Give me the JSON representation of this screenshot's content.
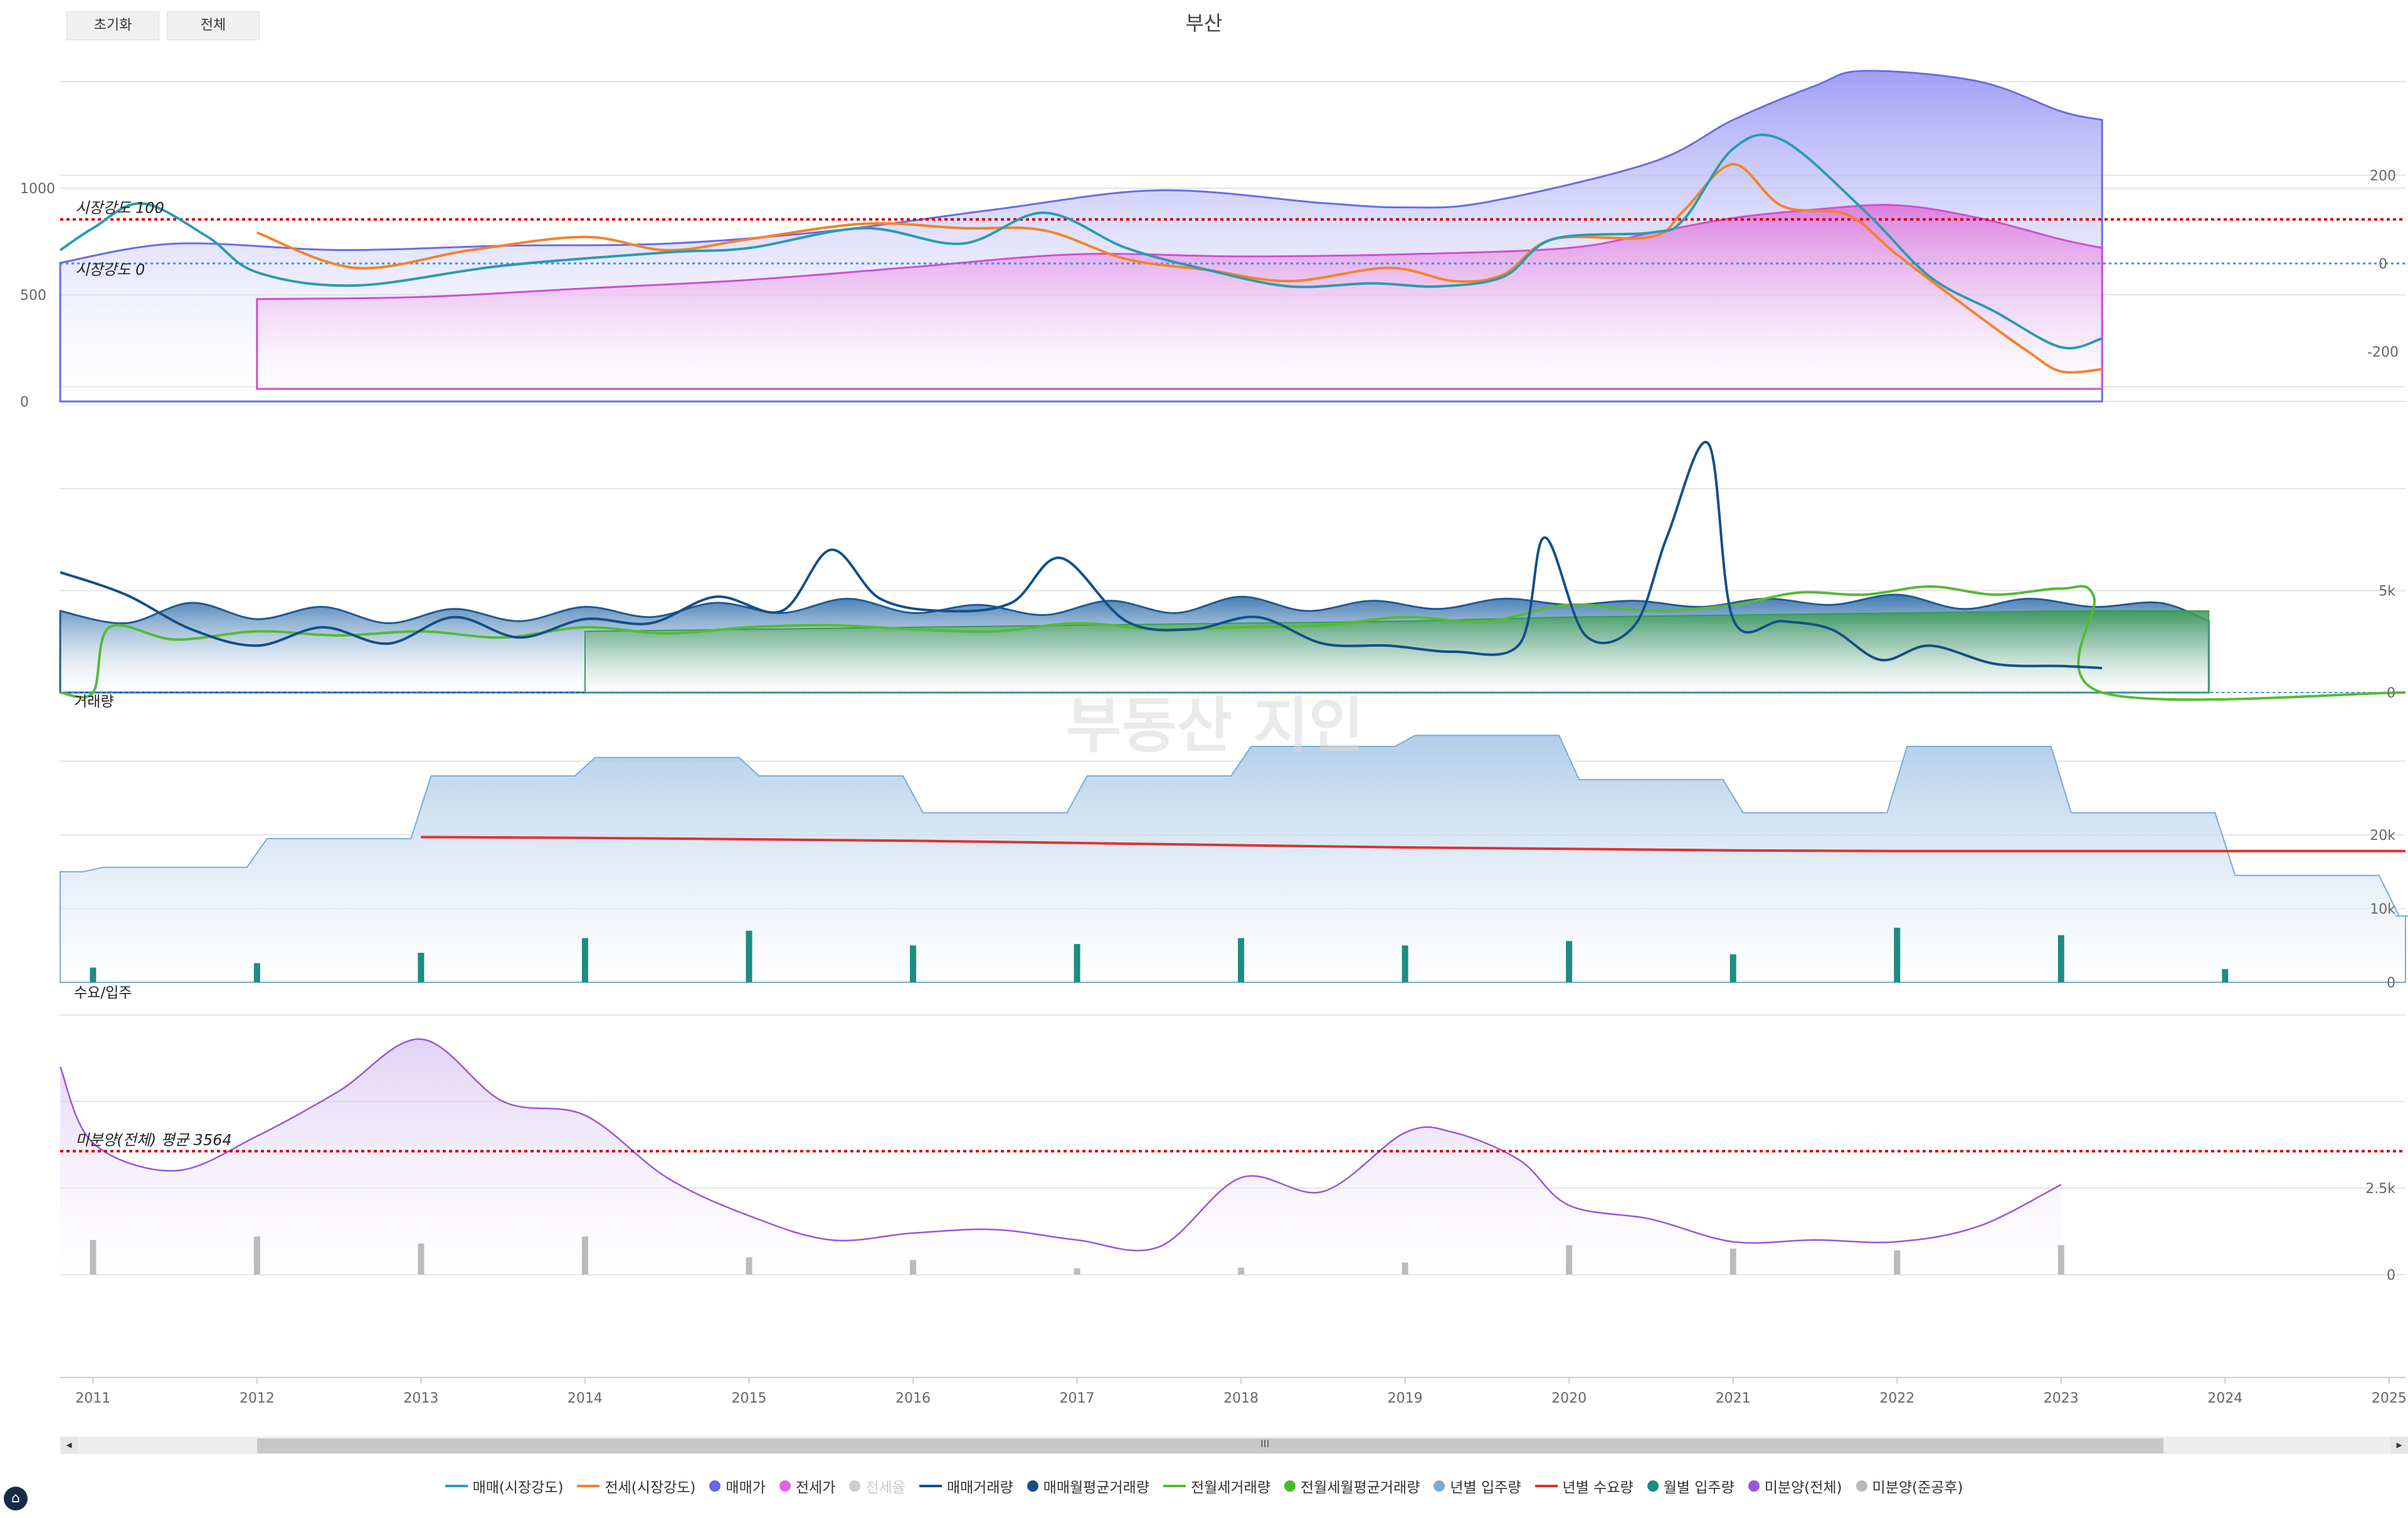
{
  "buttons": {
    "reset": "초기화",
    "all": "전체"
  },
  "title": "부산",
  "watermark": "부동산 지인",
  "x_years": [
    "2011",
    "2012",
    "2013",
    "2014",
    "2015",
    "2016",
    "2017",
    "2018",
    "2019",
    "2020",
    "2021",
    "2022",
    "2023",
    "2024",
    "2025"
  ],
  "scroll_center": "III",
  "legend": [
    {
      "label": "매매(시장강도)",
      "kind": "line",
      "color": "#2a9cb0"
    },
    {
      "label": "전세(시장강도)",
      "kind": "line",
      "color": "#f5822a"
    },
    {
      "label": "매매가",
      "kind": "dot",
      "color": "#6666ee"
    },
    {
      "label": "전세가",
      "kind": "dot",
      "color": "#e066dd"
    },
    {
      "label": "전세율",
      "kind": "dot",
      "color": "#cccccc",
      "off": true
    },
    {
      "label": "매매거래량",
      "kind": "line",
      "color": "#12508a"
    },
    {
      "label": "매매월평균거래량",
      "kind": "dot",
      "color": "#12508a"
    },
    {
      "label": "전월세거래량",
      "kind": "line",
      "color": "#55bb33"
    },
    {
      "label": "전월세월평균거래량",
      "kind": "dot",
      "color": "#44bb22"
    },
    {
      "label": "년별 입주량",
      "kind": "dot",
      "color": "#7aaad8"
    },
    {
      "label": "년별 수요량",
      "kind": "line",
      "color": "#dd3333"
    },
    {
      "label": "월별 입주량",
      "kind": "dot",
      "color": "#1e8c82"
    },
    {
      "label": "미분양(전체)",
      "kind": "dot",
      "color": "#9955dd"
    },
    {
      "label": "미분양(준공후)",
      "kind": "dot",
      "color": "#bbbbbb"
    }
  ],
  "chart_data": [
    {
      "type": "area",
      "panel": "price",
      "x_range": [
        "2010-10",
        "2025-02"
      ],
      "y_left_ticks": [
        "0",
        "500",
        "1000"
      ],
      "y_right_ticks": [
        "200",
        "0",
        "-200"
      ],
      "annotations": [
        "시장강도 100",
        "시장강도 0"
      ],
      "series": [
        {
          "name": "매매가",
          "x": [
            2010.8,
            2011.5,
            2012.5,
            2013.5,
            2014.5,
            2015.5,
            2016.5,
            2017.5,
            2018.5,
            2019.0,
            2019.5,
            2020.5,
            2021.0,
            2021.5,
            2021.8,
            2022.5,
            2023.0,
            2023.25
          ],
          "values": [
            650,
            740,
            710,
            730,
            740,
            800,
            900,
            990,
            930,
            910,
            935,
            1120,
            1320,
            1480,
            1550,
            1500,
            1360,
            1320
          ]
        },
        {
          "name": "전세가",
          "x": [
            2012.0,
            2013.0,
            2014.0,
            2015.0,
            2016.0,
            2017.0,
            2018.0,
            2019.0,
            2020.0,
            2020.5,
            2021.0,
            2021.5,
            2022.0,
            2022.5,
            2023.0,
            2023.25
          ],
          "values": [
            480,
            490,
            530,
            570,
            630,
            690,
            680,
            690,
            720,
            790,
            860,
            900,
            920,
            860,
            760,
            720
          ]
        },
        {
          "name": "매매(시장강도)",
          "x": [
            2010.8,
            2011.0,
            2011.3,
            2011.7,
            2012.0,
            2012.6,
            2013.5,
            2014.5,
            2015.0,
            2015.7,
            2016.3,
            2016.8,
            2017.3,
            2017.8,
            2018.3,
            2018.8,
            2019.2,
            2019.6,
            2019.9,
            2020.5,
            2020.7,
            2021.0,
            2021.3,
            2021.8,
            2022.2,
            2022.6,
            2023.0,
            2023.25
          ],
          "values": [
            30,
            80,
            136,
            60,
            -20,
            -50,
            -5,
            25,
            35,
            80,
            45,
            115,
            35,
            -15,
            -52,
            -45,
            -52,
            -30,
            55,
            70,
            100,
            260,
            280,
            120,
            -30,
            -110,
            -190,
            -170
          ]
        },
        {
          "name": "전세(시장강도)",
          "x": [
            2012.0,
            2012.6,
            2013.3,
            2014.0,
            2014.5,
            2015.0,
            2015.7,
            2016.3,
            2016.8,
            2017.3,
            2017.8,
            2018.3,
            2018.9,
            2019.3,
            2019.6,
            2019.9,
            2020.5,
            2020.7,
            2021.0,
            2021.3,
            2021.7,
            2022.0,
            2022.5,
            2022.8,
            2023.0,
            2023.25
          ],
          "values": [
            70,
            -10,
            30,
            60,
            30,
            55,
            90,
            80,
            75,
            10,
            -15,
            -40,
            -10,
            -40,
            -25,
            55,
            60,
            120,
            225,
            130,
            110,
            20,
            -120,
            -200,
            -245,
            -240
          ]
        }
      ]
    },
    {
      "type": "line",
      "panel": "volume",
      "label": "거래량",
      "y_right_ticks": [
        "5k",
        "0"
      ],
      "series": [
        {
          "name": "매매거래량",
          "x": [
            2010.8,
            2011.2,
            2011.6,
            2012.0,
            2012.4,
            2012.8,
            2013.2,
            2013.6,
            2014.0,
            2014.4,
            2014.8,
            2015.2,
            2015.5,
            2015.8,
            2016.2,
            2016.6,
            2016.9,
            2017.3,
            2017.7,
            2018.1,
            2018.5,
            2018.9,
            2019.3,
            2019.7,
            2019.85,
            2020.1,
            2020.4,
            2020.6,
            2020.85,
            2021.0,
            2021.3,
            2021.6,
            2021.9,
            2022.2,
            2022.6,
            2023.0,
            2023.25
          ],
          "values": [
            5900,
            4800,
            3100,
            2300,
            3200,
            2400,
            3700,
            2700,
            3600,
            3400,
            4700,
            4000,
            7000,
            4600,
            4000,
            4400,
            6600,
            3500,
            3100,
            3700,
            2400,
            2300,
            2000,
            2400,
            7600,
            2800,
            3300,
            7700,
            12200,
            3600,
            3500,
            3100,
            1600,
            2300,
            1400,
            1300,
            1200
          ]
        },
        {
          "name": "전월세거래량",
          "x": [
            2010.8,
            2011.0,
            2011.1,
            2011.5,
            2012.0,
            2012.5,
            2013.0,
            2013.5,
            2014.0,
            2014.5,
            2015.0,
            2015.5,
            2016.0,
            2016.5,
            2017.0,
            2017.5,
            2018.0,
            2018.5,
            2019.0,
            2019.5,
            2020.0,
            2020.5,
            2021.0,
            2021.4,
            2021.8,
            2022.2,
            2022.6,
            2023.0,
            2023.2,
            2023.25,
            2025.1
          ],
          "values": [
            0,
            0,
            3200,
            2600,
            3000,
            2800,
            3000,
            2700,
            3200,
            2900,
            3200,
            3300,
            3100,
            3000,
            3400,
            3100,
            3200,
            3300,
            3700,
            3500,
            4300,
            4000,
            4300,
            4900,
            4800,
            5200,
            4800,
            5100,
            4700,
            0,
            0
          ]
        },
        {
          "name": "매매월평균거래량",
          "kind": "area",
          "x": [
            2010.8,
            2011.2,
            2011.6,
            2012.0,
            2012.4,
            2012.8,
            2013.2,
            2013.6,
            2014.0,
            2014.4,
            2014.8,
            2015.2,
            2015.6,
            2016.0,
            2016.4,
            2016.8,
            2017.2,
            2017.6,
            2018.0,
            2018.4,
            2018.8,
            2019.2,
            2019.6,
            2020.0,
            2020.4,
            2020.8,
            2021.2,
            2021.6,
            2022.0,
            2022.4,
            2022.8,
            2023.2,
            2023.6,
            2023.9
          ],
          "values": [
            4000,
            3400,
            4400,
            3600,
            4200,
            3400,
            4100,
            3500,
            4200,
            3700,
            4400,
            3900,
            4600,
            3900,
            4300,
            3800,
            4500,
            3900,
            4700,
            4000,
            4500,
            4100,
            4600,
            4300,
            4500,
            4200,
            4600,
            4300,
            4800,
            4100,
            4600,
            4200,
            4400,
            3500
          ]
        },
        {
          "name": "전월세월평균거래량",
          "kind": "area",
          "x": [
            2014.0,
            2015.0,
            2016.0,
            2017.0,
            2018.0,
            2019.0,
            2020.0,
            2021.0,
            2022.0,
            2023.0,
            2023.9
          ],
          "values": [
            3000,
            3100,
            3200,
            3300,
            3400,
            3500,
            3700,
            3800,
            3900,
            4000,
            4000
          ]
        }
      ]
    },
    {
      "type": "bar",
      "panel": "supply",
      "label": "수요/입주",
      "y_right_ticks": [
        "20k",
        "10k",
        "0"
      ],
      "series": [
        {
          "name": "년별 입주량",
          "kind": "step",
          "x": [
            2010.8,
            2011.0,
            2012.0,
            2013.0,
            2014.0,
            2015.0,
            2016.0,
            2017.0,
            2018.0,
            2019.0,
            2020.0,
            2021.0,
            2022.0,
            2023.0,
            2024.0,
            2025.0,
            2025.1
          ],
          "values": [
            15000,
            15600,
            19500,
            28000,
            30500,
            28000,
            23000,
            28000,
            32000,
            33500,
            27500,
            23000,
            32000,
            23000,
            14500,
            9000,
            9000
          ]
        },
        {
          "name": "년별 수요량",
          "x": [
            2013.0,
            2014.0,
            2015.0,
            2016.0,
            2017.0,
            2018.0,
            2019.0,
            2020.0,
            2021.0,
            2022.0,
            2023.0,
            2024.0,
            2025.1
          ],
          "values": [
            19700,
            19600,
            19400,
            19200,
            18900,
            18600,
            18300,
            18100,
            17900,
            17800,
            17800,
            17800,
            17800
          ]
        },
        {
          "name": "월별 입주량",
          "x": [
            2011,
            2012,
            2013,
            2014,
            2015,
            2016,
            2017,
            2018,
            2019,
            2020,
            2021,
            2022,
            2023,
            2024
          ],
          "values": [
            1000,
            1300,
            2000,
            3000,
            3500,
            2500,
            2600,
            3000,
            2500,
            2800,
            1900,
            3700,
            3200,
            900
          ]
        }
      ]
    },
    {
      "type": "area",
      "panel": "unsold",
      "y_right_ticks": [
        "2.5k",
        "0"
      ],
      "annotations": [
        "미분양(전체) 평균 3564"
      ],
      "series": [
        {
          "name": "미분양(전체)",
          "x": [
            2010.8,
            2011.0,
            2011.5,
            2012.0,
            2012.5,
            2013.0,
            2013.5,
            2014.0,
            2014.5,
            2015.0,
            2015.5,
            2016.0,
            2016.5,
            2017.0,
            2017.5,
            2018.0,
            2018.5,
            2019.0,
            2019.3,
            2019.7,
            2020.0,
            2020.5,
            2021.0,
            2021.5,
            2022.0,
            2022.5,
            2023.0
          ],
          "values": [
            6000,
            3800,
            3000,
            4000,
            5300,
            6800,
            5000,
            4600,
            2800,
            1700,
            1000,
            1200,
            1300,
            1000,
            800,
            2800,
            2400,
            4100,
            4100,
            3300,
            2000,
            1600,
            950,
            1000,
            950,
            1400,
            2600
          ]
        },
        {
          "name": "미분양(준공후)",
          "x": [
            2011,
            2012,
            2013,
            2014,
            2015,
            2016,
            2017,
            2018,
            2019,
            2020,
            2021,
            2022,
            2023
          ],
          "values": [
            1000,
            1100,
            900,
            1100,
            500,
            420,
            180,
            200,
            350,
            850,
            750,
            700,
            850
          ]
        }
      ]
    }
  ]
}
